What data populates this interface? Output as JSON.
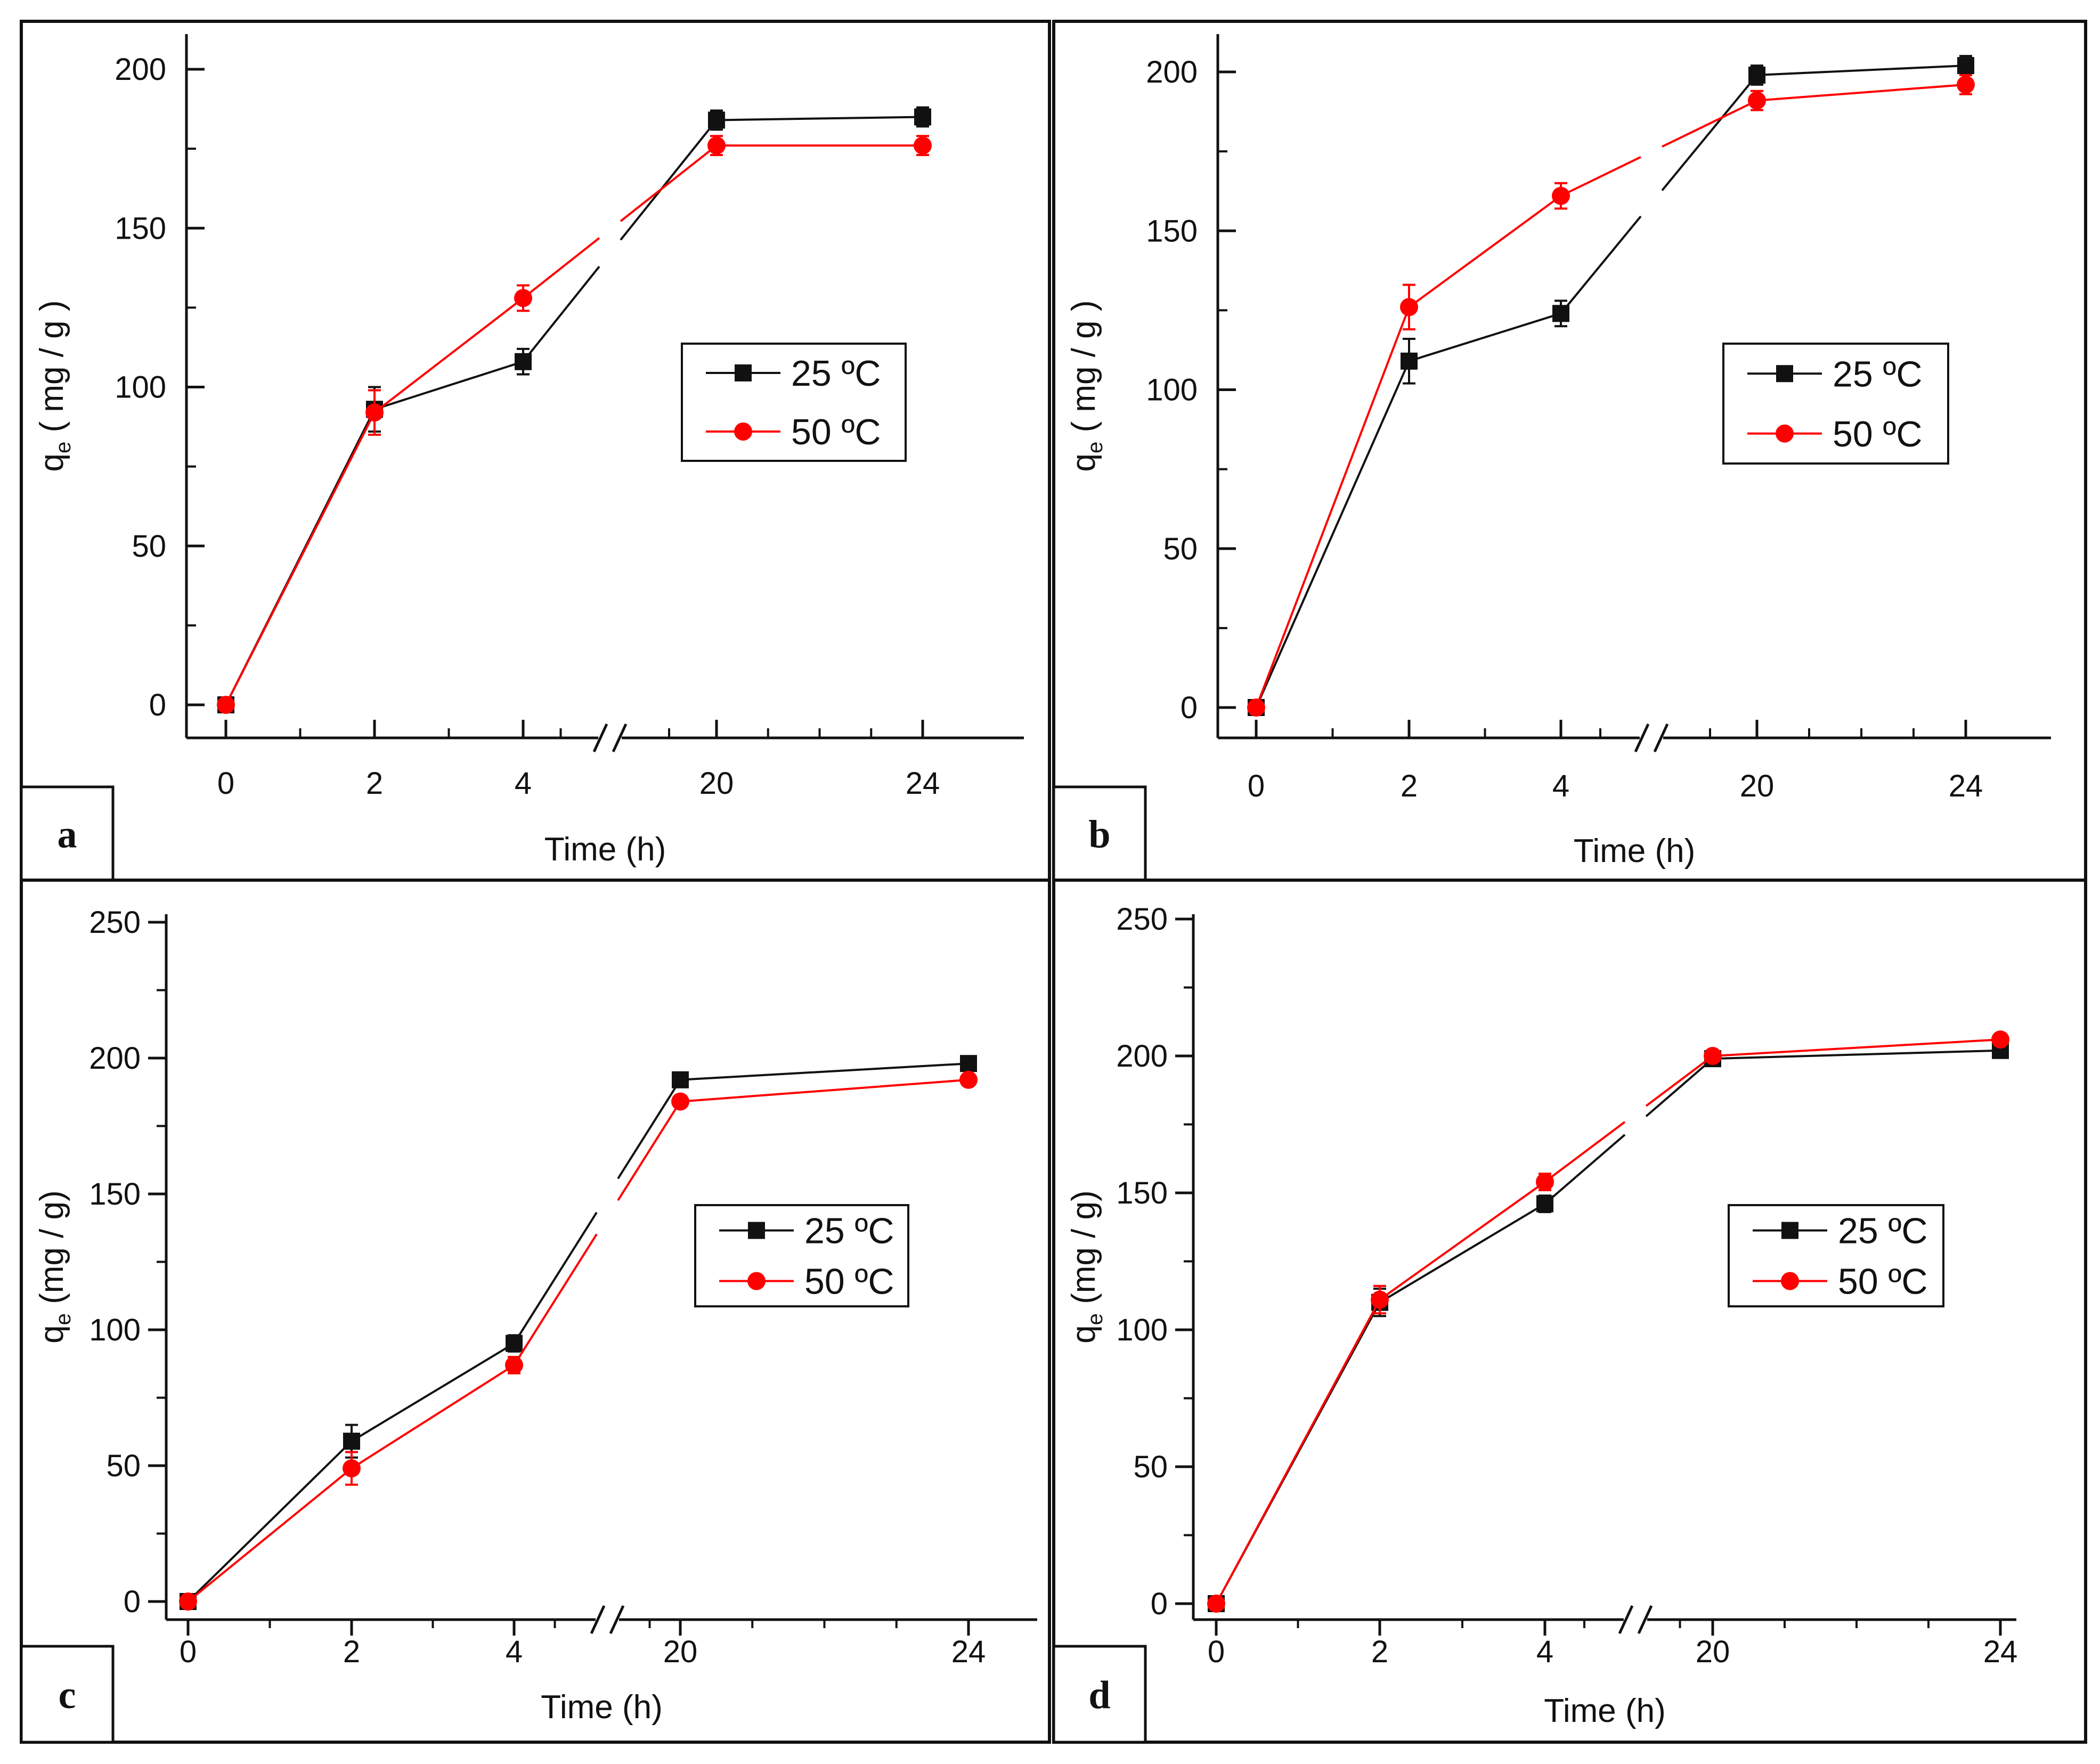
{
  "colors": {
    "series_25": "#111111",
    "series_50": "#ff0000",
    "frame": "#111111",
    "background": "#ffffff"
  },
  "chart_data": [
    {
      "panel": "a",
      "type": "line",
      "xlabel": "Time (h)",
      "ylabel_main": "q",
      "ylabel_sub": "e",
      "ylabel_tail": " ( mg / g )",
      "ylim": [
        0,
        210
      ],
      "yticks": [
        0,
        50,
        100,
        150,
        200
      ],
      "x_categories": [
        "0",
        "2",
        "4",
        "20",
        "24"
      ],
      "x_values": [
        0,
        2,
        4,
        20,
        24
      ],
      "axis_break": "between 4 and 20",
      "legend_location": "right-middle",
      "series": [
        {
          "name": "25 ºC",
          "marker": "square",
          "values": [
            0,
            93,
            108,
            184,
            185
          ],
          "errors": [
            0,
            7,
            4,
            3,
            3
          ]
        },
        {
          "name": "50 ºC",
          "marker": "circle",
          "values": [
            0,
            92,
            128,
            176,
            176
          ],
          "errors": [
            0,
            7,
            4,
            3,
            3
          ]
        }
      ]
    },
    {
      "panel": "b",
      "type": "line",
      "xlabel": "Time (h)",
      "ylabel_main": "q",
      "ylabel_sub": "e",
      "ylabel_tail": " ( mg / g )",
      "ylim": [
        -10,
        210
      ],
      "yticks": [
        0,
        50,
        100,
        150,
        200
      ],
      "x_categories": [
        "0",
        "2",
        "4",
        "20",
        "24"
      ],
      "x_values": [
        0,
        2,
        4,
        20,
        24
      ],
      "axis_break": "between 4 and 20",
      "legend_location": "right-middle",
      "series": [
        {
          "name": "25 ºC",
          "marker": "square",
          "values": [
            0,
            109,
            124,
            199,
            202
          ],
          "errors": [
            0,
            7,
            4,
            3,
            3
          ]
        },
        {
          "name": "50 ºC",
          "marker": "circle",
          "values": [
            0,
            126,
            161,
            191,
            196
          ],
          "errors": [
            0,
            7,
            4,
            3,
            3
          ]
        }
      ]
    },
    {
      "panel": "c",
      "type": "line",
      "xlabel": "Time (h)",
      "ylabel_main": "q",
      "ylabel_sub": "e",
      "ylabel_tail": " (mg / g)",
      "ylim": [
        -5,
        250
      ],
      "yticks": [
        0,
        50,
        100,
        150,
        200,
        250
      ],
      "x_categories": [
        "0",
        "2",
        "4",
        "20",
        "24"
      ],
      "x_values": [
        0,
        2,
        4,
        20,
        24
      ],
      "axis_break": "between 4 and 20",
      "legend_location": "right-middle",
      "series": [
        {
          "name": "25 ºC",
          "marker": "square",
          "values": [
            0,
            59,
            95,
            192,
            198
          ],
          "errors": [
            0,
            6,
            3,
            2,
            2
          ]
        },
        {
          "name": "50 ºC",
          "marker": "circle",
          "values": [
            0,
            49,
            87,
            184,
            192
          ],
          "errors": [
            0,
            6,
            3,
            2,
            2
          ]
        }
      ]
    },
    {
      "panel": "d",
      "type": "line",
      "xlabel": "Time (h)",
      "ylabel_main": "q",
      "ylabel_sub": "e",
      "ylabel_tail": " (mg / g)",
      "ylim": [
        -5,
        250
      ],
      "yticks": [
        0,
        50,
        100,
        150,
        200,
        250
      ],
      "x_categories": [
        "0",
        "2",
        "4",
        "20",
        "24"
      ],
      "x_values": [
        0,
        2,
        4,
        20,
        24
      ],
      "axis_break": "between 4 and 20",
      "legend_location": "right-middle",
      "series": [
        {
          "name": "25 ºC",
          "marker": "square",
          "values": [
            0,
            110,
            146,
            199,
            202
          ],
          "errors": [
            0,
            5,
            3,
            2,
            2
          ]
        },
        {
          "name": "50 ºC",
          "marker": "circle",
          "values": [
            0,
            111,
            154,
            200,
            206
          ],
          "errors": [
            0,
            5,
            3,
            2,
            2
          ]
        }
      ]
    }
  ]
}
